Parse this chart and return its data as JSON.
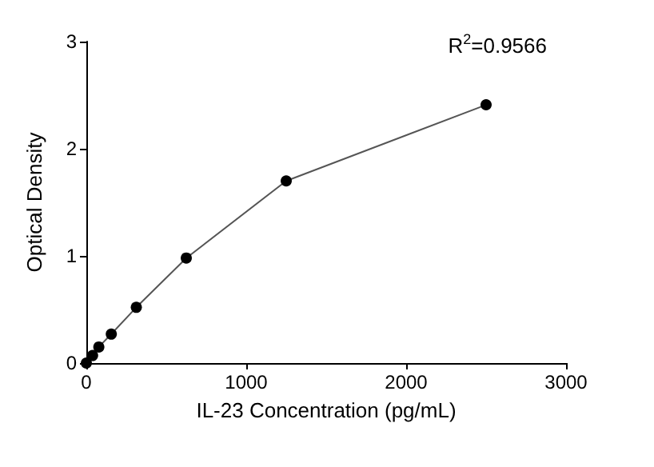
{
  "chart_data": {
    "type": "line",
    "xlabel": "IL-23 Concentration (pg/mL)",
    "ylabel": "Optical Density",
    "annotations": [
      "R$^{2}$=0.9566"
    ],
    "x": [
      0,
      39,
      78,
      156,
      312.5,
      625,
      1250,
      2500
    ],
    "series": [
      {
        "color": "#000000",
        "values": [
          0,
          0.07,
          0.15,
          0.27,
          0.52,
          0.98,
          1.7,
          2.41
        ]
      }
    ],
    "xlim": [
      0,
      3000
    ],
    "xticks": [
      0,
      1000,
      2000,
      3000
    ],
    "ylim": [
      0,
      3
    ],
    "yticks": [
      0,
      1,
      2,
      3
    ],
    "grid": false,
    "marker": "circle",
    "line_style": "solid"
  }
}
